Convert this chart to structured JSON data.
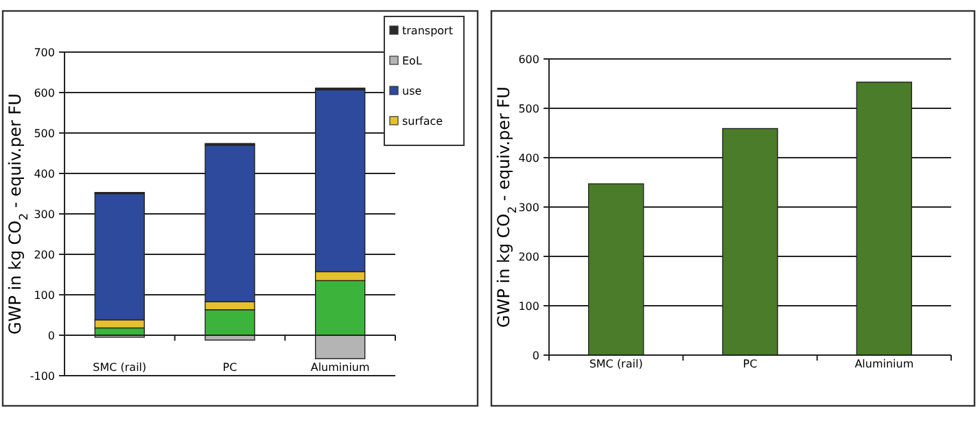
{
  "chart_data": [
    {
      "type": "bar",
      "stacked": true,
      "ylabel": "GWP in kg CO$_{2}$ - equiv.per FU",
      "categories": [
        "SMC (rail)",
        "PC",
        "Aluminium"
      ],
      "ylim": [
        -100,
        700
      ],
      "yticks": [
        -100,
        0,
        100,
        200,
        300,
        400,
        500,
        600,
        700
      ],
      "grid": "y",
      "legend": "top right",
      "series": [
        {
          "color": "#3cb43c",
          "values": [
            18,
            63,
            135
          ]
        },
        {
          "name": "surface",
          "color": "#e6c02e",
          "values": [
            20,
            20,
            22
          ]
        },
        {
          "name": "use",
          "color": "#2d4a9c",
          "values": [
            312,
            387,
            450
          ]
        },
        {
          "name": "EoL",
          "color": "#b4b4b4",
          "values": [
            -5,
            -12,
            -58
          ]
        },
        {
          "name": "transport",
          "color": "#2a2a2a",
          "values": [
            3,
            4,
            4
          ]
        }
      ]
    },
    {
      "type": "bar",
      "ylabel": "GWP in kg CO$_{2}$ - equiv.per FU",
      "categories": [
        "SMC (rail)",
        "PC",
        "Aluminium"
      ],
      "ylim": [
        0,
        600
      ],
      "yticks": [
        0,
        100,
        200,
        300,
        400,
        500,
        600
      ],
      "grid": "y",
      "legend": false,
      "series": [
        {
          "color": "#4a7c2a",
          "values": [
            347,
            459,
            553
          ]
        }
      ]
    }
  ]
}
